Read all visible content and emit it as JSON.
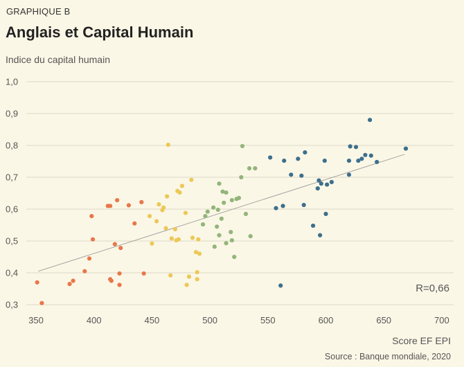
{
  "header": {
    "kicker": "GRAPHIQUE B",
    "title": "Anglais et Capital Humain",
    "ylabel": "Indice du capital humain"
  },
  "footer": {
    "xlabel": "Score EF EPI",
    "source": "Source : Banque mondiale, 2020"
  },
  "chart_data": {
    "type": "scatter",
    "title": "Anglais et Capital Humain",
    "xlabel": "Score EF EPI",
    "ylabel": "Indice du capital humain",
    "xlim": [
      345,
      700
    ],
    "ylim": [
      0.3,
      1.0
    ],
    "xticks": [
      "350",
      "400",
      "450",
      "500",
      "550",
      "600",
      "650",
      "700"
    ],
    "yticks": [
      "0,3",
      "0,4",
      "0,5",
      "0,6",
      "0,7",
      "0,8",
      "0,9",
      "1,0"
    ],
    "annotation": "R=0,66",
    "trendline": {
      "x": [
        352,
        668
      ],
      "y": [
        0.405,
        0.772
      ]
    },
    "colors": {
      "orange": "#e8774a",
      "yellow": "#ecc857",
      "green": "#93b57b",
      "blue": "#3d6f8d",
      "trend": "#9a9a9a",
      "grid": "#dcd8c8"
    },
    "series": [
      {
        "name": "orange",
        "color": "#e8774a",
        "points": [
          [
            351,
            0.37
          ],
          [
            355,
            0.305
          ],
          [
            379,
            0.365
          ],
          [
            382,
            0.375
          ],
          [
            392,
            0.405
          ],
          [
            396,
            0.445
          ],
          [
            398,
            0.578
          ],
          [
            399,
            0.505
          ],
          [
            412,
            0.61
          ],
          [
            414,
            0.61
          ],
          [
            414,
            0.38
          ],
          [
            415,
            0.375
          ],
          [
            418,
            0.49
          ],
          [
            420,
            0.628
          ],
          [
            422,
            0.398
          ],
          [
            422,
            0.362
          ],
          [
            423,
            0.478
          ],
          [
            430,
            0.612
          ],
          [
            435,
            0.555
          ],
          [
            441,
            0.622
          ],
          [
            443,
            0.398
          ]
        ]
      },
      {
        "name": "yellow",
        "color": "#ecc857",
        "points": [
          [
            448,
            0.578
          ],
          [
            450,
            0.492
          ],
          [
            454,
            0.562
          ],
          [
            456,
            0.615
          ],
          [
            459,
            0.597
          ],
          [
            460,
            0.605
          ],
          [
            462,
            0.54
          ],
          [
            463,
            0.64
          ],
          [
            464,
            0.802
          ],
          [
            466,
            0.392
          ],
          [
            467,
            0.508
          ],
          [
            470,
            0.537
          ],
          [
            471,
            0.502
          ],
          [
            472,
            0.657
          ],
          [
            473,
            0.505
          ],
          [
            474,
            0.652
          ],
          [
            476,
            0.673
          ],
          [
            479,
            0.588
          ],
          [
            480,
            0.362
          ],
          [
            482,
            0.388
          ],
          [
            484,
            0.692
          ],
          [
            485,
            0.51
          ],
          [
            488,
            0.465
          ],
          [
            489,
            0.402
          ],
          [
            490,
            0.505
          ],
          [
            489,
            0.38
          ],
          [
            491,
            0.46
          ]
        ]
      },
      {
        "name": "green",
        "color": "#93b57b",
        "points": [
          [
            494,
            0.552
          ],
          [
            496,
            0.578
          ],
          [
            498,
            0.592
          ],
          [
            503,
            0.605
          ],
          [
            504,
            0.482
          ],
          [
            506,
            0.545
          ],
          [
            507,
            0.598
          ],
          [
            508,
            0.68
          ],
          [
            508,
            0.518
          ],
          [
            510,
            0.57
          ],
          [
            511,
            0.655
          ],
          [
            512,
            0.62
          ],
          [
            514,
            0.652
          ],
          [
            514,
            0.493
          ],
          [
            518,
            0.528
          ],
          [
            519,
            0.502
          ],
          [
            519,
            0.628
          ],
          [
            521,
            0.45
          ],
          [
            523,
            0.632
          ],
          [
            525,
            0.635
          ],
          [
            527,
            0.7
          ],
          [
            528,
            0.798
          ],
          [
            531,
            0.585
          ],
          [
            534,
            0.728
          ],
          [
            535,
            0.515
          ],
          [
            539,
            0.728
          ]
        ]
      },
      {
        "name": "blue",
        "color": "#3d6f8d",
        "points": [
          [
            552,
            0.762
          ],
          [
            557,
            0.603
          ],
          [
            561,
            0.36
          ],
          [
            563,
            0.61
          ],
          [
            564,
            0.752
          ],
          [
            570,
            0.708
          ],
          [
            576,
            0.758
          ],
          [
            579,
            0.705
          ],
          [
            581,
            0.613
          ],
          [
            582,
            0.778
          ],
          [
            589,
            0.548
          ],
          [
            593,
            0.665
          ],
          [
            594,
            0.69
          ],
          [
            595,
            0.518
          ],
          [
            596,
            0.68
          ],
          [
            599,
            0.752
          ],
          [
            600,
            0.585
          ],
          [
            601,
            0.677
          ],
          [
            605,
            0.685
          ],
          [
            620,
            0.708
          ],
          [
            620,
            0.752
          ],
          [
            621,
            0.797
          ],
          [
            626,
            0.795
          ],
          [
            628,
            0.752
          ],
          [
            631,
            0.758
          ],
          [
            634,
            0.77
          ],
          [
            638,
            0.88
          ],
          [
            639,
            0.768
          ],
          [
            644,
            0.748
          ],
          [
            669,
            0.79
          ]
        ]
      }
    ]
  }
}
